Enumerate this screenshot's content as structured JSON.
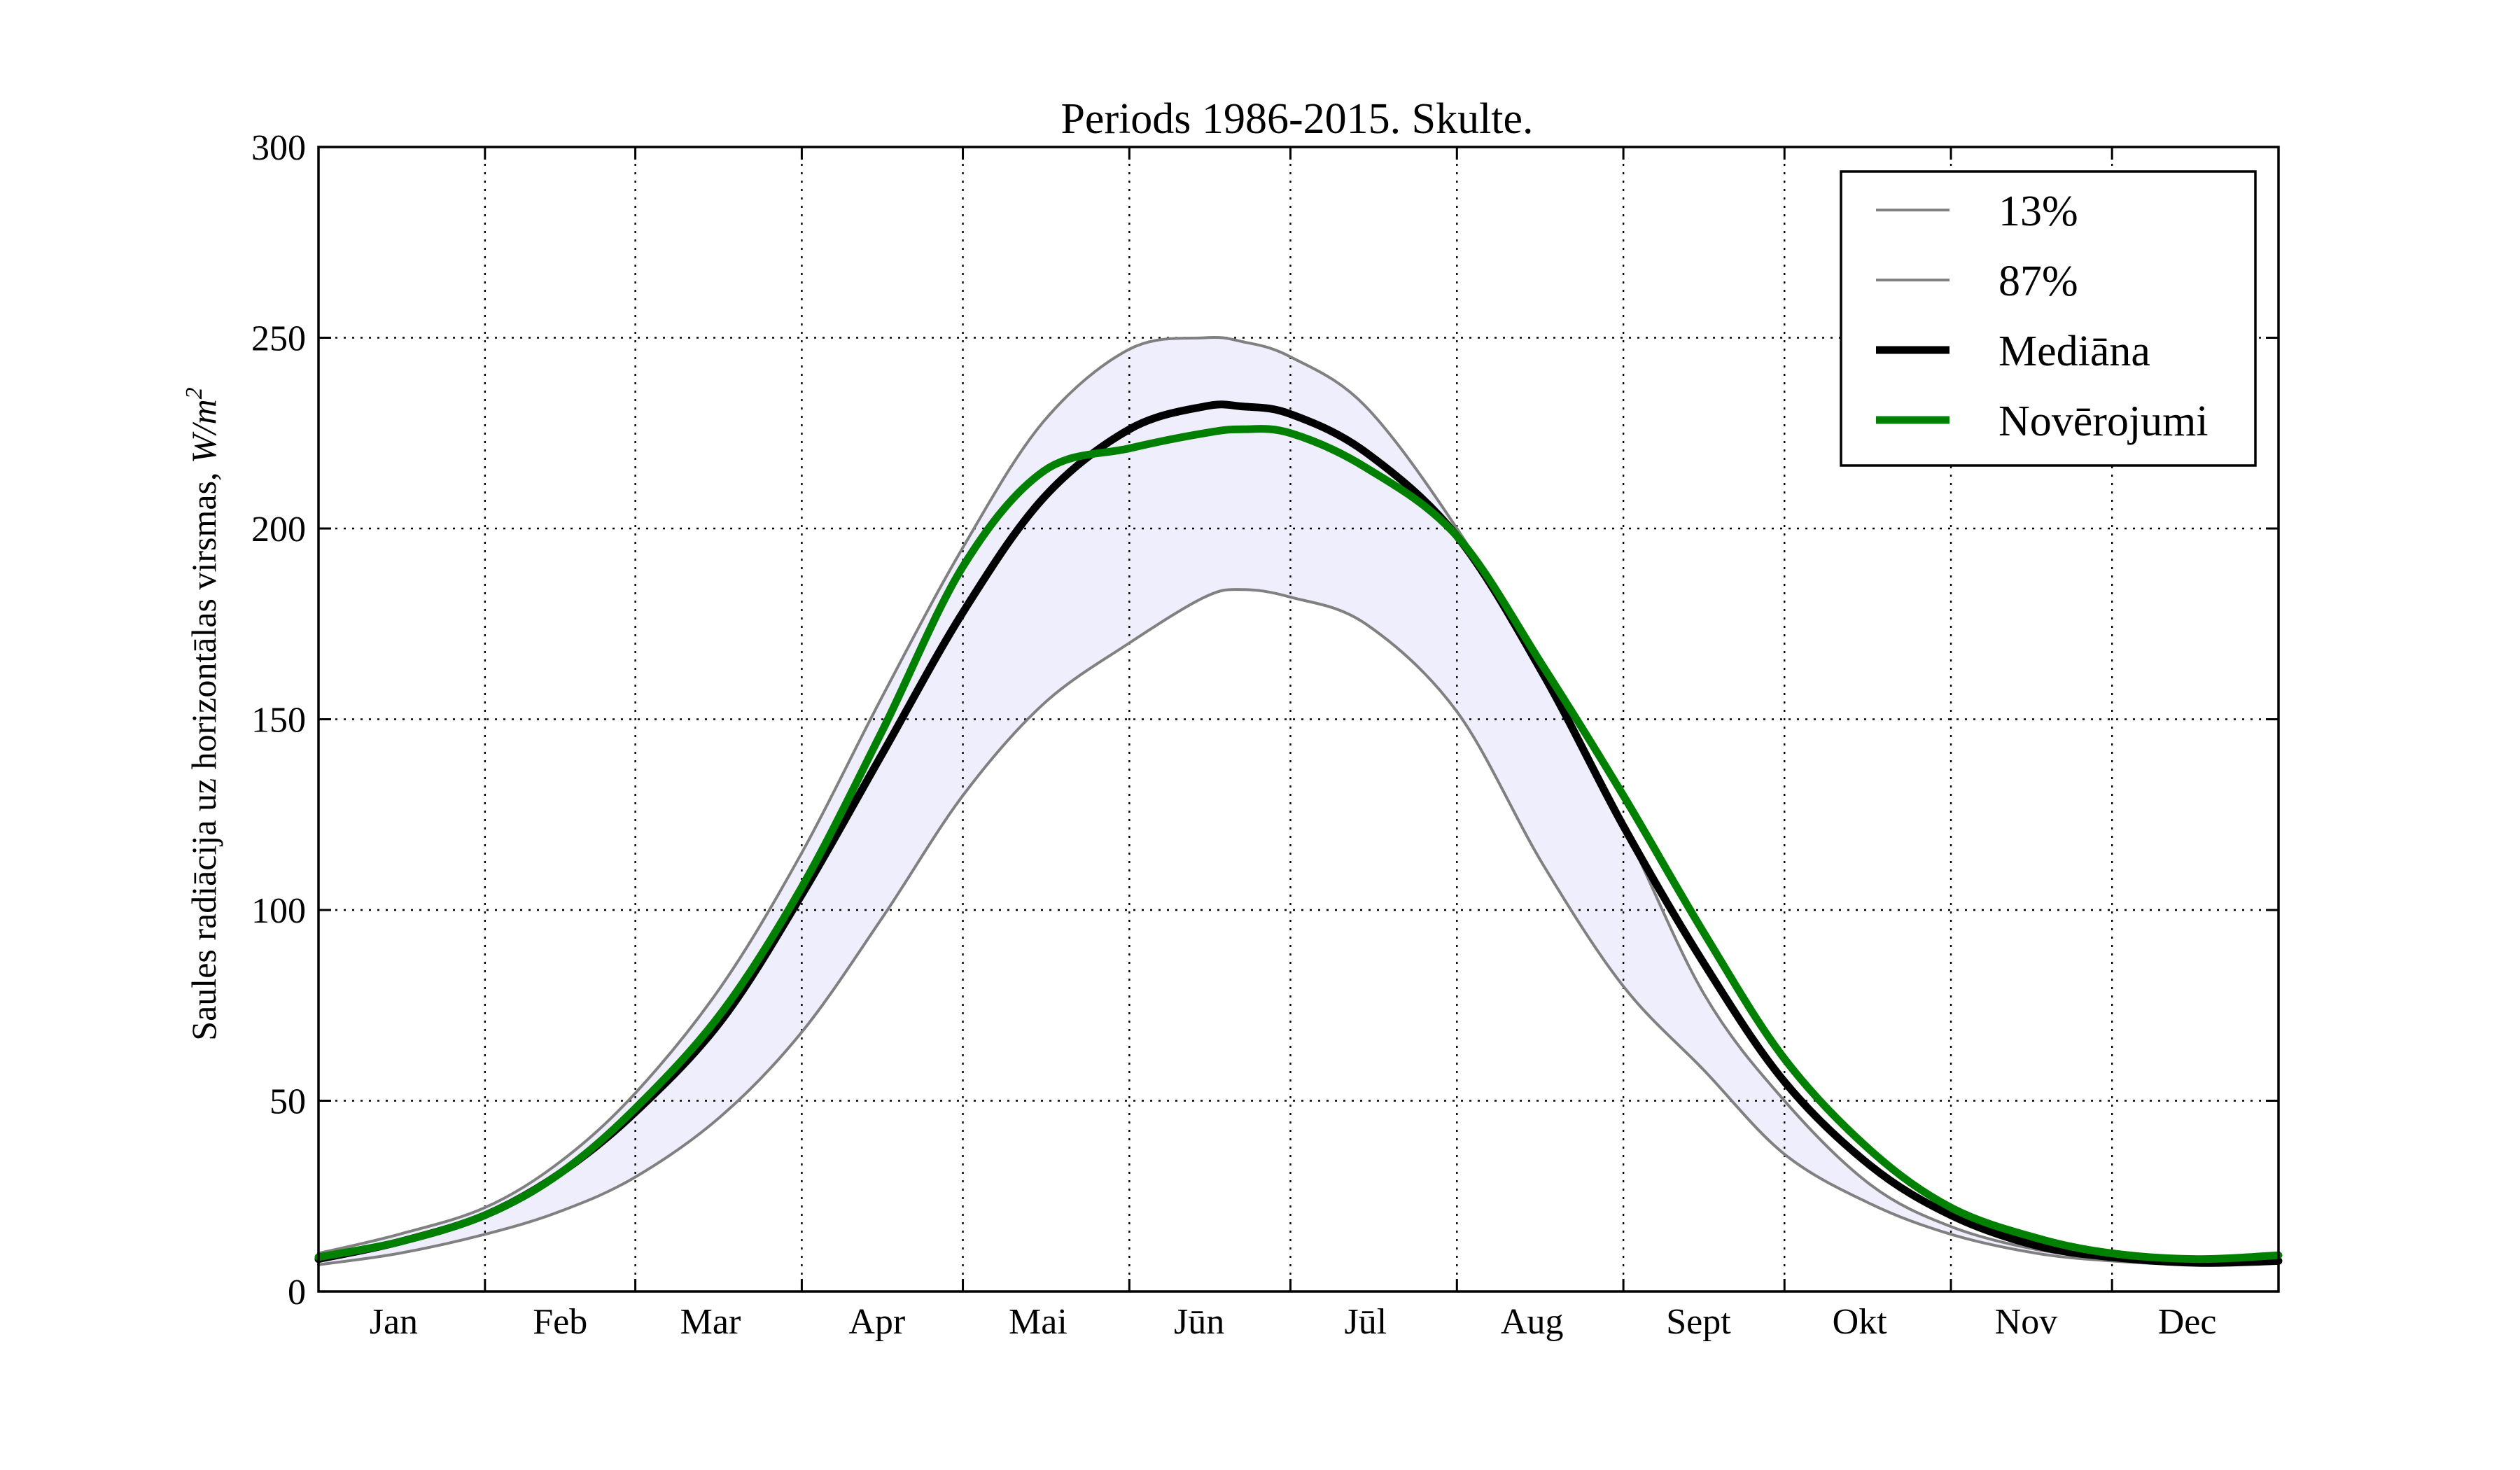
{
  "chart_data": {
    "type": "line",
    "title": "Periods 1986-2015. Skulte.",
    "ylabel": "Saules radiācija uz horizontālas virsmas,",
    "ylabel_unit": "W/m",
    "ylabel_unit_exp": "2",
    "xlabel": "",
    "ylim": [
      0,
      300
    ],
    "yticks": [
      0,
      50,
      100,
      150,
      200,
      250,
      300
    ],
    "xlim": [
      0,
      365
    ],
    "month_boundaries": [
      0,
      31,
      59,
      90,
      120,
      151,
      181,
      212,
      243,
      273,
      304,
      334,
      365
    ],
    "month_labels": [
      "Jan",
      "Feb",
      "Mar",
      "Apr",
      "Mai",
      "Jūn",
      "Jūl",
      "Aug",
      "Sept",
      "Okt",
      "Nov",
      "Dec"
    ],
    "month_label_x": [
      14,
      45,
      73,
      104,
      134,
      164,
      195,
      226,
      257,
      287,
      318,
      348
    ],
    "grid": true,
    "band_color": "#eeeefd",
    "legend_position": "top-right",
    "x": [
      0,
      15,
      31,
      45,
      59,
      75,
      90,
      105,
      120,
      135,
      151,
      165,
      172,
      181,
      195,
      212,
      228,
      243,
      258,
      273,
      289,
      304,
      320,
      334,
      350,
      365
    ],
    "series": [
      {
        "name": "13%",
        "color": "#808080",
        "width": 4,
        "values": [
          7,
          10,
          15,
          21,
          30,
          46,
          68,
          98,
          130,
          154,
          170,
          182,
          184,
          182,
          175,
          152,
          112,
          80,
          58,
          36,
          23,
          15,
          10,
          8,
          7,
          7.5
        ]
      },
      {
        "name": "87%",
        "color": "#808080",
        "width": 4,
        "values": [
          10,
          15,
          22,
          34,
          52,
          80,
          115,
          156,
          195,
          228,
          247,
          250,
          249,
          245,
          232,
          200,
          162,
          122,
          78,
          50,
          28,
          17,
          11,
          9,
          8,
          9
        ]
      },
      {
        "name": "Mediāna",
        "color": "#000000",
        "width": 11,
        "values": [
          8.5,
          13,
          20,
          31,
          47,
          71,
          104,
          141,
          178,
          208,
          226,
          232,
          232,
          230,
          220,
          198,
          162,
          122,
          86,
          55,
          33,
          20,
          12,
          9,
          7.5,
          8
        ]
      },
      {
        "name": "Novērojumi",
        "color": "#008000",
        "width": 11,
        "values": [
          9,
          13,
          20,
          31,
          48,
          73,
          106,
          147,
          190,
          215,
          221,
          225,
          226,
          225,
          216,
          198,
          164,
          130,
          94,
          61,
          37,
          22,
          14,
          10,
          8.5,
          9.5
        ]
      }
    ]
  }
}
